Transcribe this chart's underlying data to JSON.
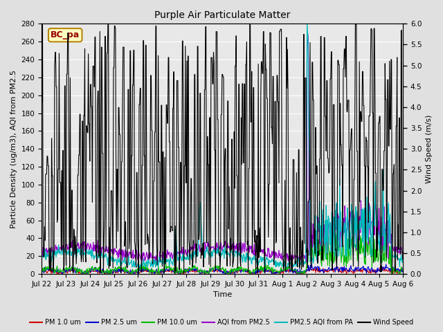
{
  "title": "Purple Air Particulate Matter",
  "ylabel_left": "Particle Density (ug/m3), AQI from PM2.5",
  "ylabel_right": "Wind Speed (m/s)",
  "xlabel": "Time",
  "annotation_text": "BC_pa",
  "annotation_box_color": "#FFFFC0",
  "annotation_border_color": "#B8860B",
  "annotation_text_color": "#990000",
  "ylim_left": [
    0,
    280
  ],
  "ylim_right": [
    0,
    6.0
  ],
  "yticks_left": [
    0,
    20,
    40,
    60,
    80,
    100,
    120,
    140,
    160,
    180,
    200,
    220,
    240,
    260,
    280
  ],
  "yticks_right": [
    0.0,
    0.5,
    1.0,
    1.5,
    2.0,
    2.5,
    3.0,
    3.5,
    4.0,
    4.5,
    5.0,
    5.5,
    6.0
  ],
  "bg_color": "#E0E0E0",
  "plot_bg_color": "#E8E8E8",
  "grid_color": "white",
  "series": {
    "pm1": {
      "label": "PM 1.0 um",
      "color": "#CC0000",
      "lw": 0.8
    },
    "pm25": {
      "label": "PM 2.5 um",
      "color": "#0000CC",
      "lw": 0.8
    },
    "pm10": {
      "label": "PM 10.0 um",
      "color": "#00BB00",
      "lw": 0.8
    },
    "aqi_pm25": {
      "label": "AQI from PM2.5",
      "color": "#9900CC",
      "lw": 0.9
    },
    "aqi_pa": {
      "label": "PM2.5 AQI from PA",
      "color": "#00BBBB",
      "lw": 0.9
    },
    "wind": {
      "label": "Wind Speed",
      "color": "#000000",
      "lw": 0.8
    }
  },
  "xtick_labels": [
    "Jul 22",
    "Jul 23",
    "Jul 24",
    "Jul 25",
    "Jul 26",
    "Jul 27",
    "Jul 28",
    "Jul 29",
    "Jul 30",
    "Jul 31",
    "Aug 1",
    "Aug 2",
    "Aug 3",
    "Aug 4",
    "Aug 5",
    "Aug 6"
  ],
  "n_points": 720,
  "figsize": [
    6.4,
    4.8
  ],
  "dpi": 100
}
